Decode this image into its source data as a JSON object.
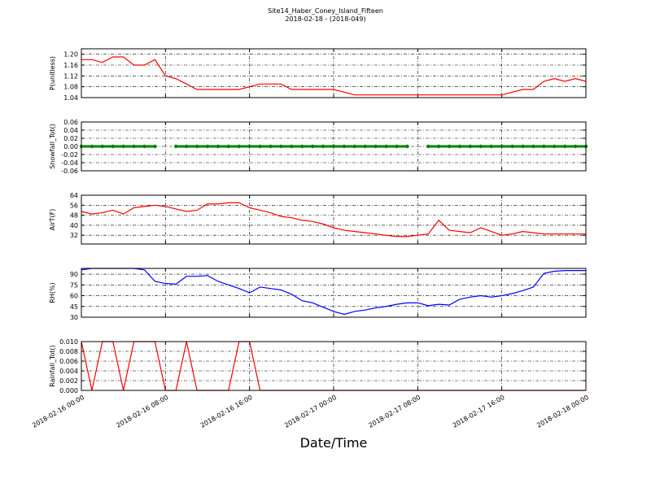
{
  "title": "Site14_Haber_Coney_Island_Fifteen",
  "subtitle": "2018-02-18 - (2018-049)",
  "x_label": "Date/Time",
  "chart_data": [
    {
      "type": "line",
      "ylabel": "P(unitless)",
      "color": "#ff0000",
      "x": [
        "2018-02-16 00:00",
        "2018-02-16 01:00",
        "2018-02-16 02:00",
        "2018-02-16 03:00",
        "2018-02-16 04:00",
        "2018-02-16 05:00",
        "2018-02-16 06:00",
        "2018-02-16 07:00",
        "2018-02-16 08:00",
        "2018-02-16 09:00",
        "2018-02-16 10:00",
        "2018-02-16 11:00",
        "2018-02-16 12:00",
        "2018-02-16 13:00",
        "2018-02-16 14:00",
        "2018-02-16 15:00",
        "2018-02-16 16:00",
        "2018-02-16 17:00",
        "2018-02-16 18:00",
        "2018-02-16 19:00",
        "2018-02-16 20:00",
        "2018-02-16 21:00",
        "2018-02-16 22:00",
        "2018-02-16 23:00",
        "2018-02-17 00:00",
        "2018-02-17 01:00",
        "2018-02-17 02:00",
        "2018-02-17 03:00",
        "2018-02-17 04:00",
        "2018-02-17 05:00",
        "2018-02-17 06:00",
        "2018-02-17 07:00",
        "2018-02-17 08:00",
        "2018-02-17 09:00",
        "2018-02-17 10:00",
        "2018-02-17 11:00",
        "2018-02-17 12:00",
        "2018-02-17 13:00",
        "2018-02-17 14:00",
        "2018-02-17 15:00",
        "2018-02-17 16:00",
        "2018-02-17 17:00",
        "2018-02-17 18:00",
        "2018-02-17 19:00",
        "2018-02-17 20:00",
        "2018-02-17 21:00",
        "2018-02-17 22:00",
        "2018-02-17 23:00",
        "2018-02-18 00:00"
      ],
      "values": [
        1.18,
        1.18,
        1.17,
        1.19,
        1.19,
        1.16,
        1.16,
        1.18,
        1.12,
        1.11,
        1.09,
        1.07,
        1.07,
        1.07,
        1.07,
        1.07,
        1.08,
        1.09,
        1.09,
        1.09,
        1.07,
        1.07,
        1.07,
        1.07,
        1.07,
        1.06,
        1.05,
        1.05,
        1.05,
        1.05,
        1.05,
        1.05,
        1.05,
        1.05,
        1.05,
        1.05,
        1.05,
        1.05,
        1.05,
        1.05,
        1.05,
        1.06,
        1.07,
        1.07,
        1.1,
        1.11,
        1.1,
        1.11,
        1.1
      ],
      "xlim": [
        "2018-02-16 00:00",
        "2018-02-18 00:00"
      ],
      "ylim": [
        1.04,
        1.22
      ],
      "yticks": [
        1.04,
        1.08,
        1.12,
        1.16,
        {
          "value": 1.2,
          "label": "1.20"
        }
      ],
      "grid": true
    },
    {
      "type": "line",
      "ylabel": "Snowfall_Tot()",
      "color": "#008000",
      "marker": true,
      "x": [
        "2018-02-16 00:00",
        "2018-02-16 01:00",
        "2018-02-16 02:00",
        "2018-02-16 03:00",
        "2018-02-16 04:00",
        "2018-02-16 05:00",
        "2018-02-16 06:00",
        "2018-02-16 07:00",
        "2018-02-16 08:00",
        "2018-02-16 09:00",
        "2018-02-16 10:00",
        "2018-02-16 11:00",
        "2018-02-16 12:00",
        "2018-02-16 13:00",
        "2018-02-16 14:00",
        "2018-02-16 15:00",
        "2018-02-16 16:00",
        "2018-02-16 17:00",
        "2018-02-16 18:00",
        "2018-02-16 19:00",
        "2018-02-16 20:00",
        "2018-02-16 21:00",
        "2018-02-16 22:00",
        "2018-02-16 23:00",
        "2018-02-17 00:00",
        "2018-02-17 01:00",
        "2018-02-17 02:00",
        "2018-02-17 03:00",
        "2018-02-17 04:00",
        "2018-02-17 05:00",
        "2018-02-17 06:00",
        "2018-02-17 07:00",
        "2018-02-17 08:00",
        "2018-02-17 09:00",
        "2018-02-17 10:00",
        "2018-02-17 11:00",
        "2018-02-17 12:00",
        "2018-02-17 13:00",
        "2018-02-17 14:00",
        "2018-02-17 15:00",
        "2018-02-17 16:00",
        "2018-02-17 17:00",
        "2018-02-17 18:00",
        "2018-02-17 19:00",
        "2018-02-17 20:00",
        "2018-02-17 21:00",
        "2018-02-17 22:00",
        "2018-02-17 23:00",
        "2018-02-18 00:00"
      ],
      "values": [
        0,
        0,
        0,
        0,
        0,
        0,
        0,
        0,
        null,
        0,
        0,
        0,
        0,
        0,
        0,
        0,
        0,
        0,
        0,
        0,
        0,
        0,
        0,
        0,
        0,
        0,
        0,
        0,
        0,
        0,
        0,
        0,
        null,
        0,
        0,
        0,
        0,
        0,
        0,
        0,
        0,
        0,
        0,
        0,
        0,
        0,
        0,
        0,
        0
      ],
      "xlim": [
        "2018-02-16 00:00",
        "2018-02-18 00:00"
      ],
      "ylim": [
        -0.06,
        0.06
      ],
      "yticks": [
        -0.06,
        -0.04,
        -0.02,
        {
          "value": 0,
          "label": "0.00"
        },
        0.02,
        0.04,
        0.06
      ],
      "grid": true
    },
    {
      "type": "line",
      "ylabel": "AirT(F)",
      "color": "#ff0000",
      "x": [
        "2018-02-16 00:00",
        "2018-02-16 01:00",
        "2018-02-16 02:00",
        "2018-02-16 03:00",
        "2018-02-16 04:00",
        "2018-02-16 05:00",
        "2018-02-16 06:00",
        "2018-02-16 07:00",
        "2018-02-16 08:00",
        "2018-02-16 09:00",
        "2018-02-16 10:00",
        "2018-02-16 11:00",
        "2018-02-16 12:00",
        "2018-02-16 13:00",
        "2018-02-16 14:00",
        "2018-02-16 15:00",
        "2018-02-16 16:00",
        "2018-02-16 17:00",
        "2018-02-16 18:00",
        "2018-02-16 19:00",
        "2018-02-16 20:00",
        "2018-02-16 21:00",
        "2018-02-16 22:00",
        "2018-02-16 23:00",
        "2018-02-17 00:00",
        "2018-02-17 01:00",
        "2018-02-17 02:00",
        "2018-02-17 03:00",
        "2018-02-17 04:00",
        "2018-02-17 05:00",
        "2018-02-17 06:00",
        "2018-02-17 07:00",
        "2018-02-17 08:00",
        "2018-02-17 09:00",
        "2018-02-17 10:00",
        "2018-02-17 11:00",
        "2018-02-17 12:00",
        "2018-02-17 13:00",
        "2018-02-17 14:00",
        "2018-02-17 15:00",
        "2018-02-17 16:00",
        "2018-02-17 17:00",
        "2018-02-17 18:00",
        "2018-02-17 19:00",
        "2018-02-17 20:00",
        "2018-02-17 21:00",
        "2018-02-17 22:00",
        "2018-02-17 23:00",
        "2018-02-18 00:00"
      ],
      "values": [
        51,
        49,
        50,
        52,
        49,
        54,
        55,
        56,
        55,
        53,
        51,
        52,
        57,
        57,
        58,
        58,
        54,
        52,
        50,
        47,
        46,
        44,
        43,
        41,
        38,
        36,
        35,
        34,
        33,
        32,
        31,
        31,
        32,
        33,
        44,
        36,
        35,
        34,
        38,
        35,
        32,
        33,
        35,
        34,
        33,
        33,
        33,
        33,
        33
      ],
      "xlim": [
        "2018-02-16 00:00",
        "2018-02-18 00:00"
      ],
      "ylim": [
        25,
        64
      ],
      "yticks": [
        32,
        40,
        48,
        56,
        64
      ],
      "grid": true
    },
    {
      "type": "line",
      "ylabel": "RH(%)",
      "color": "#0000ff",
      "x": [
        "2018-02-16 00:00",
        "2018-02-16 01:00",
        "2018-02-16 02:00",
        "2018-02-16 03:00",
        "2018-02-16 04:00",
        "2018-02-16 05:00",
        "2018-02-16 06:00",
        "2018-02-16 07:00",
        "2018-02-16 08:00",
        "2018-02-16 09:00",
        "2018-02-16 10:00",
        "2018-02-16 11:00",
        "2018-02-16 12:00",
        "2018-02-16 13:00",
        "2018-02-16 14:00",
        "2018-02-16 15:00",
        "2018-02-16 16:00",
        "2018-02-16 17:00",
        "2018-02-16 18:00",
        "2018-02-16 19:00",
        "2018-02-16 20:00",
        "2018-02-16 21:00",
        "2018-02-16 22:00",
        "2018-02-16 23:00",
        "2018-02-17 00:00",
        "2018-02-17 01:00",
        "2018-02-17 02:00",
        "2018-02-17 03:00",
        "2018-02-17 04:00",
        "2018-02-17 05:00",
        "2018-02-17 06:00",
        "2018-02-17 07:00",
        "2018-02-17 08:00",
        "2018-02-17 09:00",
        "2018-02-17 10:00",
        "2018-02-17 11:00",
        "2018-02-17 12:00",
        "2018-02-17 13:00",
        "2018-02-17 14:00",
        "2018-02-17 15:00",
        "2018-02-17 16:00",
        "2018-02-17 17:00",
        "2018-02-17 18:00",
        "2018-02-17 19:00",
        "2018-02-17 20:00",
        "2018-02-17 21:00",
        "2018-02-17 22:00",
        "2018-02-17 23:00",
        "2018-02-18 00:00"
      ],
      "values": [
        96,
        98,
        98,
        98,
        98,
        98,
        96,
        80,
        77,
        76,
        87,
        87,
        88,
        80,
        75,
        70,
        64,
        72,
        70,
        68,
        62,
        53,
        50,
        44,
        38,
        34,
        38,
        40,
        43,
        45,
        48,
        50,
        50,
        46,
        48,
        47,
        55,
        58,
        60,
        58,
        60,
        63,
        67,
        72,
        91,
        94,
        95,
        95,
        95
      ],
      "xlim": [
        "2018-02-16 00:00",
        "2018-02-18 00:00"
      ],
      "ylim": [
        30,
        98
      ],
      "yticks": [
        30,
        45,
        60,
        75,
        90
      ],
      "grid": true
    },
    {
      "type": "line",
      "ylabel": "Rainfall_Tot()",
      "color": "#ff0000",
      "x": [
        "2018-02-16 00:00",
        "2018-02-16 01:00",
        "2018-02-16 02:00",
        "2018-02-16 03:00",
        "2018-02-16 04:00",
        "2018-02-16 05:00",
        "2018-02-16 06:00",
        "2018-02-16 07:00",
        "2018-02-16 08:00",
        "2018-02-16 09:00",
        "2018-02-16 10:00",
        "2018-02-16 11:00",
        "2018-02-16 12:00",
        "2018-02-16 13:00",
        "2018-02-16 14:00",
        "2018-02-16 15:00",
        "2018-02-16 16:00",
        "2018-02-16 17:00",
        "2018-02-16 18:00",
        "2018-02-16 19:00",
        "2018-02-16 20:00",
        "2018-02-16 21:00",
        "2018-02-16 22:00",
        "2018-02-16 23:00",
        "2018-02-17 00:00",
        "2018-02-17 01:00",
        "2018-02-17 02:00",
        "2018-02-17 03:00",
        "2018-02-17 04:00",
        "2018-02-17 05:00",
        "2018-02-17 06:00",
        "2018-02-17 07:00",
        "2018-02-17 08:00",
        "2018-02-17 09:00",
        "2018-02-17 10:00",
        "2018-02-17 11:00",
        "2018-02-17 12:00",
        "2018-02-17 13:00",
        "2018-02-17 14:00",
        "2018-02-17 15:00",
        "2018-02-17 16:00",
        "2018-02-17 17:00",
        "2018-02-17 18:00",
        "2018-02-17 19:00",
        "2018-02-17 20:00",
        "2018-02-17 21:00",
        "2018-02-17 22:00",
        "2018-02-17 23:00",
        "2018-02-18 00:00"
      ],
      "values": [
        0.01,
        0,
        0.01,
        0.01,
        0,
        0.01,
        0.01,
        0.01,
        0,
        0,
        0.01,
        0,
        0,
        0,
        0,
        0.01,
        0.01,
        0,
        0,
        0,
        0,
        0,
        0,
        0,
        0,
        0,
        0,
        0,
        0,
        0,
        0,
        0,
        0,
        0,
        0,
        0,
        0,
        0,
        0,
        0,
        0,
        0,
        0,
        0,
        0,
        0,
        0,
        0,
        0
      ],
      "xlim": [
        "2018-02-16 00:00",
        "2018-02-18 00:00"
      ],
      "xticks": [
        "2018-02-16 00:00",
        "2018-02-16 08:00",
        "2018-02-16 16:00",
        "2018-02-17 00:00",
        "2018-02-17 08:00",
        "2018-02-17 16:00",
        "2018-02-18 00:00"
      ],
      "ylim": [
        0,
        0.01
      ],
      "yticks": [
        {
          "value": 0,
          "label": "0.000"
        },
        0.002,
        0.004,
        0.006,
        0.008,
        {
          "value": 0.01,
          "label": "0.010"
        }
      ],
      "grid": true
    }
  ]
}
